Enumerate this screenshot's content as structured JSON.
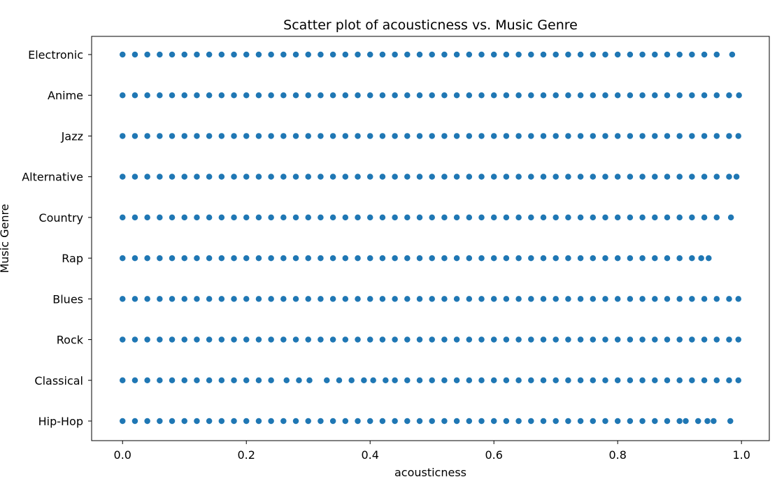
{
  "chart_data": {
    "type": "scatter",
    "title": "Scatter plot of acousticness vs. Music Genre",
    "xlabel": "acousticness",
    "ylabel": "Music Genre",
    "xlim": [
      -0.05,
      1.045
    ],
    "xticks": [
      0.0,
      0.2,
      0.4,
      0.6,
      0.8,
      1.0
    ],
    "xtick_labels": [
      "0.0",
      "0.2",
      "0.4",
      "0.6",
      "0.8",
      "1.0"
    ],
    "categories": [
      "Electronic",
      "Anime",
      "Jazz",
      "Alternative",
      "Country",
      "Rap",
      "Blues",
      "Rock",
      "Classical",
      "Hip-Hop"
    ],
    "grid": false,
    "legend": "none",
    "marker_color": "#1f77b4",
    "series": [
      {
        "category": "Electronic",
        "x": [
          0.0,
          0.02,
          0.04,
          0.06,
          0.08,
          0.1,
          0.12,
          0.14,
          0.16,
          0.18,
          0.2,
          0.22,
          0.24,
          0.26,
          0.28,
          0.3,
          0.32,
          0.34,
          0.36,
          0.38,
          0.4,
          0.42,
          0.44,
          0.46,
          0.48,
          0.5,
          0.52,
          0.54,
          0.56,
          0.58,
          0.6,
          0.62,
          0.64,
          0.66,
          0.68,
          0.7,
          0.72,
          0.74,
          0.76,
          0.78,
          0.8,
          0.82,
          0.84,
          0.86,
          0.88,
          0.9,
          0.92,
          0.94,
          0.96,
          0.985
        ]
      },
      {
        "category": "Anime",
        "x": [
          0.0,
          0.02,
          0.04,
          0.06,
          0.08,
          0.1,
          0.12,
          0.14,
          0.16,
          0.18,
          0.2,
          0.22,
          0.24,
          0.26,
          0.28,
          0.3,
          0.32,
          0.34,
          0.36,
          0.38,
          0.4,
          0.42,
          0.44,
          0.46,
          0.48,
          0.5,
          0.52,
          0.54,
          0.56,
          0.58,
          0.6,
          0.62,
          0.64,
          0.66,
          0.68,
          0.7,
          0.72,
          0.74,
          0.76,
          0.78,
          0.8,
          0.82,
          0.84,
          0.86,
          0.88,
          0.9,
          0.92,
          0.94,
          0.96,
          0.98,
          0.996
        ]
      },
      {
        "category": "Jazz",
        "x": [
          0.0,
          0.02,
          0.04,
          0.06,
          0.08,
          0.1,
          0.12,
          0.14,
          0.16,
          0.18,
          0.2,
          0.22,
          0.24,
          0.26,
          0.28,
          0.3,
          0.32,
          0.34,
          0.36,
          0.38,
          0.4,
          0.42,
          0.44,
          0.46,
          0.48,
          0.5,
          0.52,
          0.54,
          0.56,
          0.58,
          0.6,
          0.62,
          0.64,
          0.66,
          0.68,
          0.7,
          0.72,
          0.74,
          0.76,
          0.78,
          0.8,
          0.82,
          0.84,
          0.86,
          0.88,
          0.9,
          0.92,
          0.94,
          0.96,
          0.98,
          0.995
        ]
      },
      {
        "category": "Alternative",
        "x": [
          0.0,
          0.02,
          0.04,
          0.06,
          0.08,
          0.1,
          0.12,
          0.14,
          0.16,
          0.18,
          0.2,
          0.22,
          0.24,
          0.26,
          0.28,
          0.3,
          0.32,
          0.34,
          0.36,
          0.38,
          0.4,
          0.42,
          0.44,
          0.46,
          0.48,
          0.5,
          0.52,
          0.54,
          0.56,
          0.58,
          0.6,
          0.62,
          0.64,
          0.66,
          0.68,
          0.7,
          0.72,
          0.74,
          0.76,
          0.78,
          0.8,
          0.82,
          0.84,
          0.86,
          0.88,
          0.9,
          0.92,
          0.94,
          0.96,
          0.98,
          0.992
        ]
      },
      {
        "category": "Country",
        "x": [
          0.0,
          0.02,
          0.04,
          0.06,
          0.08,
          0.1,
          0.12,
          0.14,
          0.16,
          0.18,
          0.2,
          0.22,
          0.24,
          0.26,
          0.28,
          0.3,
          0.32,
          0.34,
          0.36,
          0.38,
          0.4,
          0.42,
          0.44,
          0.46,
          0.48,
          0.5,
          0.52,
          0.54,
          0.56,
          0.58,
          0.6,
          0.62,
          0.64,
          0.66,
          0.68,
          0.7,
          0.72,
          0.74,
          0.76,
          0.78,
          0.8,
          0.82,
          0.84,
          0.86,
          0.88,
          0.9,
          0.92,
          0.94,
          0.96,
          0.983
        ]
      },
      {
        "category": "Rap",
        "x": [
          0.0,
          0.02,
          0.04,
          0.06,
          0.08,
          0.1,
          0.12,
          0.14,
          0.16,
          0.18,
          0.2,
          0.22,
          0.24,
          0.26,
          0.28,
          0.3,
          0.32,
          0.34,
          0.36,
          0.38,
          0.4,
          0.42,
          0.44,
          0.46,
          0.48,
          0.5,
          0.52,
          0.54,
          0.56,
          0.58,
          0.6,
          0.62,
          0.64,
          0.66,
          0.68,
          0.7,
          0.72,
          0.74,
          0.76,
          0.78,
          0.8,
          0.82,
          0.84,
          0.86,
          0.88,
          0.9,
          0.92,
          0.935,
          0.947
        ]
      },
      {
        "category": "Blues",
        "x": [
          0.0,
          0.02,
          0.04,
          0.06,
          0.08,
          0.1,
          0.12,
          0.14,
          0.16,
          0.18,
          0.2,
          0.22,
          0.24,
          0.26,
          0.28,
          0.3,
          0.32,
          0.34,
          0.36,
          0.38,
          0.4,
          0.42,
          0.44,
          0.46,
          0.48,
          0.5,
          0.52,
          0.54,
          0.56,
          0.58,
          0.6,
          0.62,
          0.64,
          0.66,
          0.68,
          0.7,
          0.72,
          0.74,
          0.76,
          0.78,
          0.8,
          0.82,
          0.84,
          0.86,
          0.88,
          0.9,
          0.92,
          0.94,
          0.96,
          0.98,
          0.995
        ]
      },
      {
        "category": "Rock",
        "x": [
          0.0,
          0.02,
          0.04,
          0.06,
          0.08,
          0.1,
          0.12,
          0.14,
          0.16,
          0.18,
          0.2,
          0.22,
          0.24,
          0.26,
          0.28,
          0.3,
          0.32,
          0.34,
          0.36,
          0.38,
          0.4,
          0.42,
          0.44,
          0.46,
          0.48,
          0.5,
          0.52,
          0.54,
          0.56,
          0.58,
          0.6,
          0.62,
          0.64,
          0.66,
          0.68,
          0.7,
          0.72,
          0.74,
          0.76,
          0.78,
          0.8,
          0.82,
          0.84,
          0.86,
          0.88,
          0.9,
          0.92,
          0.94,
          0.96,
          0.98,
          0.995
        ]
      },
      {
        "category": "Classical",
        "x": [
          0.0,
          0.02,
          0.04,
          0.06,
          0.08,
          0.1,
          0.12,
          0.14,
          0.16,
          0.18,
          0.2,
          0.22,
          0.24,
          0.265,
          0.285,
          0.302,
          0.33,
          0.35,
          0.37,
          0.39,
          0.405,
          0.425,
          0.44,
          0.46,
          0.48,
          0.5,
          0.52,
          0.54,
          0.56,
          0.58,
          0.6,
          0.62,
          0.64,
          0.66,
          0.68,
          0.7,
          0.72,
          0.74,
          0.76,
          0.78,
          0.8,
          0.82,
          0.84,
          0.86,
          0.88,
          0.9,
          0.92,
          0.94,
          0.96,
          0.98,
          0.995
        ]
      },
      {
        "category": "Hip-Hop",
        "x": [
          0.0,
          0.02,
          0.04,
          0.06,
          0.08,
          0.1,
          0.12,
          0.14,
          0.16,
          0.18,
          0.2,
          0.22,
          0.24,
          0.26,
          0.28,
          0.3,
          0.32,
          0.34,
          0.36,
          0.38,
          0.4,
          0.42,
          0.44,
          0.46,
          0.48,
          0.5,
          0.52,
          0.54,
          0.56,
          0.58,
          0.6,
          0.62,
          0.64,
          0.66,
          0.68,
          0.7,
          0.72,
          0.74,
          0.76,
          0.78,
          0.8,
          0.82,
          0.84,
          0.86,
          0.88,
          0.9,
          0.91,
          0.93,
          0.945,
          0.955,
          0.982
        ]
      }
    ]
  }
}
